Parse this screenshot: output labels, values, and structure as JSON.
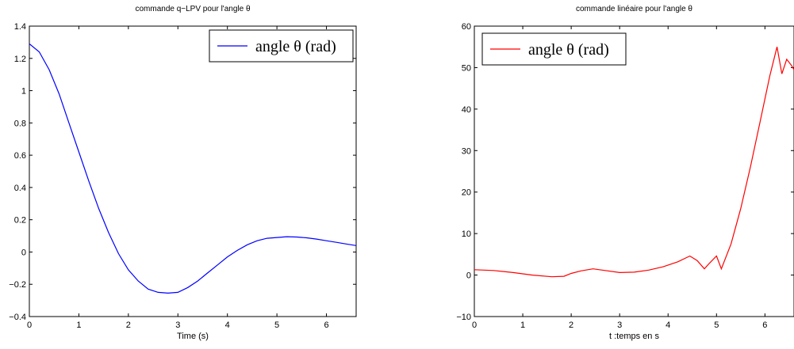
{
  "chart_data": [
    {
      "type": "line",
      "title": "commande q−LPV pour l'angle θ",
      "xlabel": "Time (s)",
      "ylabel": "",
      "xlim": [
        0,
        6.6
      ],
      "ylim": [
        -0.4,
        1.4
      ],
      "xticks": [
        "0",
        "1",
        "2",
        "3",
        "4",
        "5",
        "6"
      ],
      "yticks": [
        "−0.4",
        "−0.2",
        "0",
        "0.2",
        "0.4",
        "0.6",
        "0.8",
        "1",
        "1.2",
        "1.4"
      ],
      "legend": {
        "position": "top-right",
        "entries": [
          "angle θ (rad)"
        ]
      },
      "grid": false,
      "series": [
        {
          "name": "angle θ (rad)",
          "color": "#0000ff",
          "x": [
            0,
            0.2,
            0.4,
            0.6,
            0.8,
            1.0,
            1.2,
            1.4,
            1.6,
            1.8,
            2.0,
            2.2,
            2.4,
            2.6,
            2.8,
            3.0,
            3.2,
            3.4,
            3.6,
            3.8,
            4.0,
            4.2,
            4.4,
            4.6,
            4.8,
            5.0,
            5.2,
            5.4,
            5.6,
            5.8,
            6.0,
            6.2,
            6.4,
            6.6
          ],
          "y": [
            1.29,
            1.24,
            1.13,
            0.98,
            0.8,
            0.62,
            0.44,
            0.27,
            0.12,
            -0.01,
            -0.11,
            -0.18,
            -0.23,
            -0.25,
            -0.255,
            -0.25,
            -0.22,
            -0.18,
            -0.13,
            -0.08,
            -0.03,
            0.01,
            0.045,
            0.07,
            0.085,
            0.09,
            0.095,
            0.093,
            0.088,
            0.08,
            0.07,
            0.06,
            0.05,
            0.04
          ]
        }
      ]
    },
    {
      "type": "line",
      "title": "commande linéaire pour l'angle θ",
      "xlabel": "t :temps en s",
      "ylabel": "",
      "xlim": [
        0,
        6.6
      ],
      "ylim": [
        -10,
        60
      ],
      "xticks": [
        "0",
        "1",
        "2",
        "3",
        "4",
        "5",
        "6"
      ],
      "yticks": [
        "−10",
        "0",
        "10",
        "20",
        "30",
        "40",
        "50",
        "60"
      ],
      "legend": {
        "position": "top-left",
        "entries": [
          "angle θ (rad)"
        ]
      },
      "grid": false,
      "series": [
        {
          "name": "angle θ (rad)",
          "color": "#ff0000",
          "x": [
            0,
            0.4,
            0.8,
            1.2,
            1.6,
            1.85,
            2.0,
            2.2,
            2.45,
            2.7,
            3.0,
            3.3,
            3.6,
            3.9,
            4.2,
            4.45,
            4.6,
            4.75,
            4.85,
            5.0,
            5.1,
            5.3,
            5.5,
            5.7,
            5.9,
            6.1,
            6.25,
            6.35,
            6.45,
            6.55,
            6.6
          ],
          "y": [
            1.3,
            1.1,
            0.6,
            0.0,
            -0.4,
            -0.3,
            0.4,
            1.0,
            1.5,
            1.1,
            0.6,
            0.7,
            1.2,
            2.0,
            3.2,
            4.6,
            3.5,
            1.5,
            2.8,
            4.6,
            1.5,
            7.5,
            16,
            26,
            37,
            48,
            55,
            48.5,
            52,
            50.5,
            49.5
          ]
        }
      ]
    }
  ]
}
